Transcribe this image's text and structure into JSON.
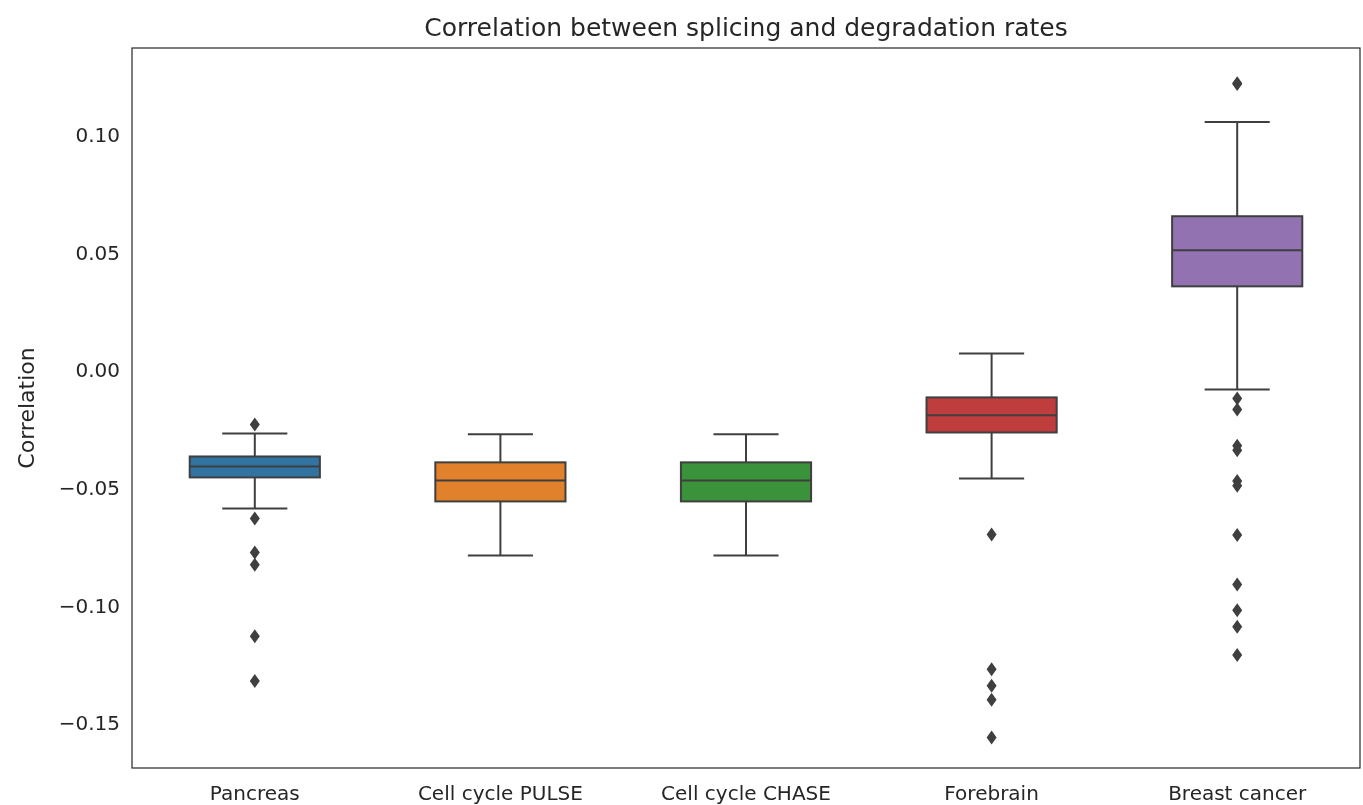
{
  "chart_data": {
    "type": "box",
    "title": "Correlation between splicing and degradation rates",
    "ylabel": "Correlation",
    "categories": [
      "Pancreas",
      "Cell cycle PULSE",
      "Cell cycle CHASE",
      "Forebrain",
      "Breast cancer"
    ],
    "colors": [
      "#3274a1",
      "#e1812c",
      "#3a923a",
      "#c03d3e",
      "#9372b2"
    ],
    "boxes": [
      {
        "low": -0.0587,
        "q1": -0.0455,
        "median": -0.0409,
        "q3": -0.0366,
        "high": -0.0268,
        "outliers": [
          -0.023,
          -0.063,
          -0.0774,
          -0.0826,
          -0.113,
          -0.132
        ]
      },
      {
        "low": -0.0787,
        "q1": -0.0557,
        "median": -0.0468,
        "q3": -0.0391,
        "high": -0.0272
      },
      {
        "low": -0.0787,
        "q1": -0.0557,
        "median": -0.0468,
        "q3": -0.0391,
        "high": -0.0272
      },
      {
        "low": -0.046,
        "q1": -0.0264,
        "median": -0.0191,
        "q3": -0.0115,
        "high": 0.0072,
        "outliers": [
          -0.0698,
          -0.127,
          -0.134,
          -0.14,
          -0.156
        ]
      },
      {
        "low": -0.0081,
        "q1": 0.0357,
        "median": 0.051,
        "q3": 0.0655,
        "high": 0.1055,
        "outliers": [
          0.122,
          0.1217,
          -0.012,
          -0.0166,
          -0.032,
          -0.034,
          -0.047,
          -0.049,
          -0.07,
          -0.091,
          -0.102,
          -0.109,
          -0.121
        ]
      }
    ],
    "ylim": [
      -0.169,
      0.137
    ],
    "yticks": [
      {
        "value": -0.15,
        "label": "−0.15"
      },
      {
        "value": -0.1,
        "label": "−0.10"
      },
      {
        "value": -0.05,
        "label": "−0.05"
      },
      {
        "value": 0,
        "label": "0.00"
      },
      {
        "value": 0.05,
        "label": "0.05"
      },
      {
        "value": 0.1,
        "label": "0.10"
      }
    ],
    "grid": false
  }
}
